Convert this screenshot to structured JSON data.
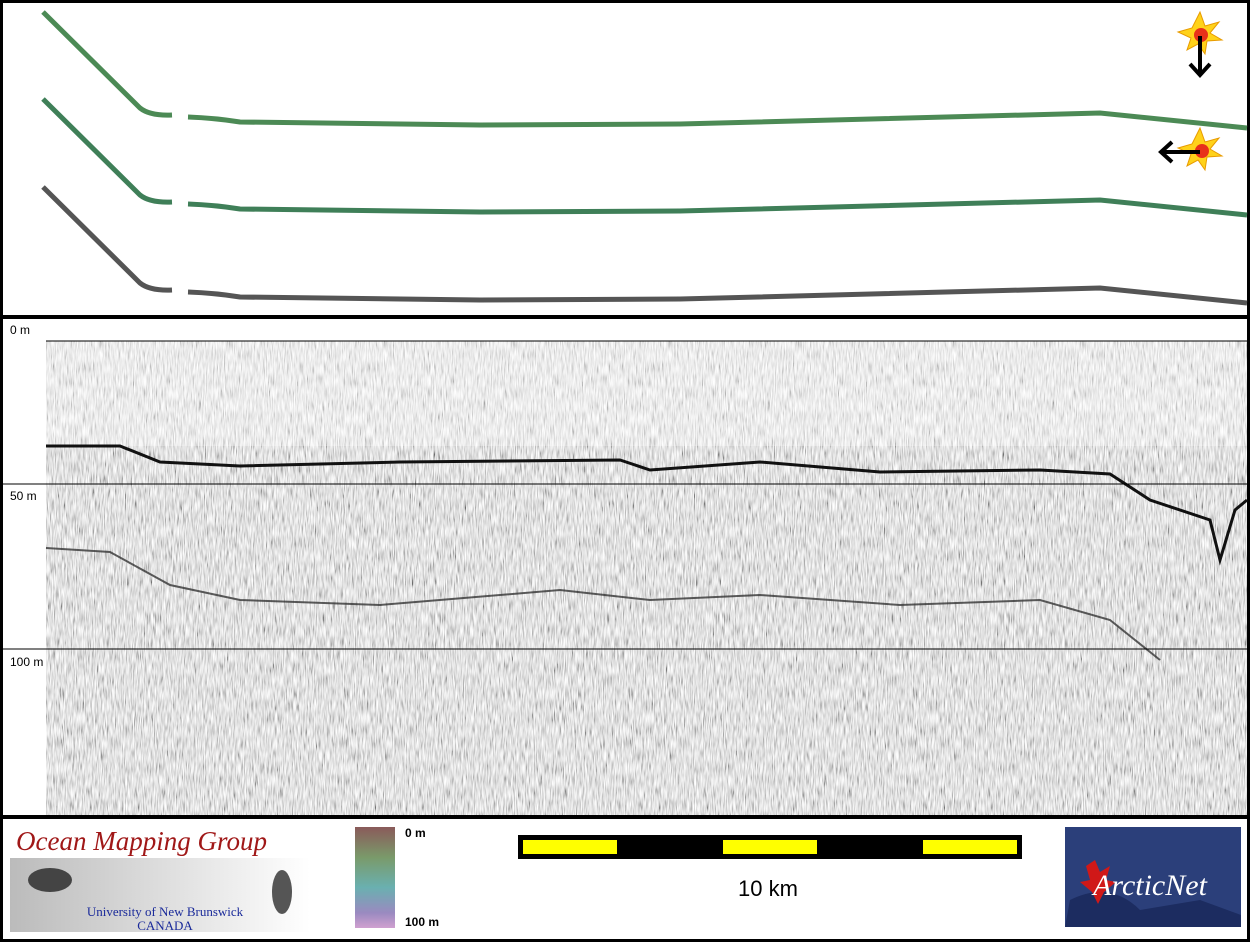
{
  "profile": {
    "depth_labels": [
      "0 m",
      "50 m",
      "100 m"
    ]
  },
  "footer": {
    "logo": {
      "title": "Ocean Mapping Group",
      "university": "University of New Brunswick",
      "country": "CANADA"
    },
    "color_scale": {
      "top": "0 m",
      "bottom": "100 m"
    },
    "scale_bar": {
      "label": "10 km"
    },
    "partner_logo": {
      "label": "ArcticNet"
    }
  }
}
